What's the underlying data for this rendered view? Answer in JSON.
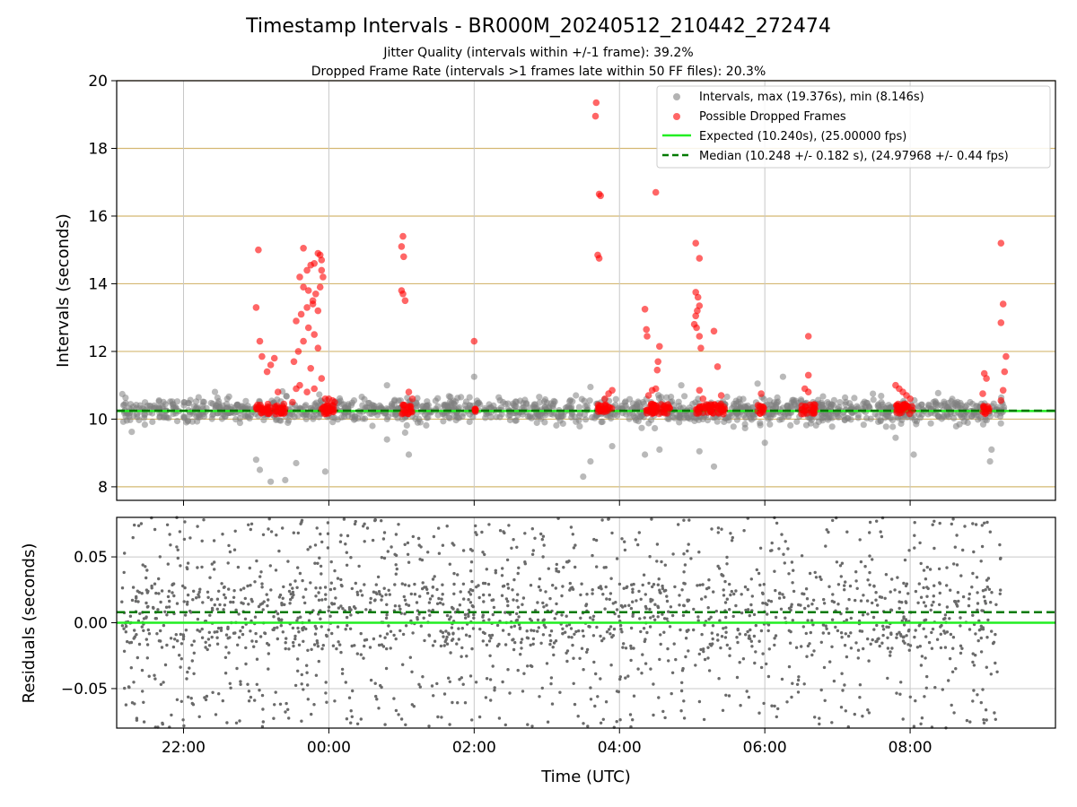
{
  "chart_data": [
    {
      "type": "scatter",
      "title": "Timestamp Intervals - BR000M_20240512_210442_272474",
      "subtitle_lines": [
        "Jitter Quality (intervals within +/-1 frame): 39.2%",
        "Dropped Frame Rate (intervals >1 frames late within 50 FF files): 20.3%"
      ],
      "xlabel": "",
      "ylabel": "Intervals (seconds)",
      "x_unit": "hours since 00:00 UTC (negative = previous day)",
      "xlim": [
        -2.92,
        10.0
      ],
      "ylim": [
        7.6,
        20
      ],
      "yticks": [
        8,
        10,
        12,
        14,
        16,
        18,
        20
      ],
      "ytick_labels": [
        "8",
        "10",
        "12",
        "14",
        "16",
        "18",
        "20"
      ],
      "xticks": [
        -2,
        0,
        2,
        4,
        6,
        8
      ],
      "grid": "on",
      "legend_position": "top-right",
      "colors": {
        "intervals": "#808080",
        "dropped": "#ff0000",
        "expected": "#22ee22",
        "median": "#007a00",
        "hgrid": "#d4b872",
        "vgrid": "#c8c8c8"
      },
      "series": [
        {
          "name": "Intervals, max (19.376s), min (8.146s)",
          "marker": "circle",
          "color": "#808080",
          "summary": {
            "max": 19.376,
            "min": 8.146,
            "x_range": [
              -2.85,
              9.3
            ],
            "typical_band": [
              9.6,
              10.8
            ]
          },
          "outlier_points": [
            {
              "x": -1.0,
              "y": 8.8
            },
            {
              "x": -0.95,
              "y": 8.5
            },
            {
              "x": -0.8,
              "y": 8.15
            },
            {
              "x": -0.6,
              "y": 8.2
            },
            {
              "x": -0.45,
              "y": 8.7
            },
            {
              "x": -0.05,
              "y": 8.45
            },
            {
              "x": 0.6,
              "y": 9.8
            },
            {
              "x": 1.1,
              "y": 8.95
            },
            {
              "x": 1.05,
              "y": 9.6
            },
            {
              "x": 0.8,
              "y": 9.4
            },
            {
              "x": 3.5,
              "y": 8.3
            },
            {
              "x": 3.6,
              "y": 8.75
            },
            {
              "x": 3.9,
              "y": 9.2
            },
            {
              "x": 4.35,
              "y": 8.95
            },
            {
              "x": 4.55,
              "y": 9.1
            },
            {
              "x": 5.1,
              "y": 9.05
            },
            {
              "x": 5.3,
              "y": 8.6
            },
            {
              "x": 6.0,
              "y": 9.3
            },
            {
              "x": 7.8,
              "y": 9.45
            },
            {
              "x": 8.05,
              "y": 8.95
            },
            {
              "x": 9.1,
              "y": 8.75
            },
            {
              "x": 9.12,
              "y": 9.1
            },
            {
              "x": 5.9,
              "y": 11.05
            },
            {
              "x": 6.25,
              "y": 11.25
            },
            {
              "x": 0.8,
              "y": 11.0
            },
            {
              "x": 2.0,
              "y": 11.25
            },
            {
              "x": 3.6,
              "y": 10.95
            },
            {
              "x": 4.85,
              "y": 11.0
            }
          ]
        },
        {
          "name": "Possible Dropped Frames",
          "marker": "circle",
          "color": "#ff0000",
          "points": [
            {
              "x": -0.97,
              "y": 15.0
            },
            {
              "x": -1.0,
              "y": 13.3
            },
            {
              "x": -0.95,
              "y": 12.3
            },
            {
              "x": -0.92,
              "y": 11.85
            },
            {
              "x": -0.75,
              "y": 11.8
            },
            {
              "x": -0.8,
              "y": 11.6
            },
            {
              "x": -0.85,
              "y": 11.4
            },
            {
              "x": -0.7,
              "y": 10.8
            },
            {
              "x": -0.35,
              "y": 15.05
            },
            {
              "x": -0.15,
              "y": 14.9
            },
            {
              "x": -0.12,
              "y": 14.85
            },
            {
              "x": -0.1,
              "y": 14.7
            },
            {
              "x": -0.2,
              "y": 14.6
            },
            {
              "x": -0.25,
              "y": 14.55
            },
            {
              "x": -0.3,
              "y": 14.4
            },
            {
              "x": -0.4,
              "y": 14.2
            },
            {
              "x": -0.1,
              "y": 14.4
            },
            {
              "x": -0.08,
              "y": 14.2
            },
            {
              "x": -0.12,
              "y": 13.9
            },
            {
              "x": -0.18,
              "y": 13.7
            },
            {
              "x": -0.22,
              "y": 13.5
            },
            {
              "x": -0.3,
              "y": 13.3
            },
            {
              "x": -0.38,
              "y": 13.1
            },
            {
              "x": -0.45,
              "y": 12.9
            },
            {
              "x": -0.28,
              "y": 12.7
            },
            {
              "x": -0.2,
              "y": 12.5
            },
            {
              "x": -0.35,
              "y": 12.3
            },
            {
              "x": -0.15,
              "y": 12.1
            },
            {
              "x": -0.42,
              "y": 12.0
            },
            {
              "x": -0.48,
              "y": 11.7
            },
            {
              "x": -0.25,
              "y": 11.5
            },
            {
              "x": -0.1,
              "y": 11.2
            },
            {
              "x": -0.4,
              "y": 11.0
            },
            {
              "x": -0.3,
              "y": 10.8
            },
            {
              "x": -0.2,
              "y": 10.9
            },
            {
              "x": -0.05,
              "y": 10.6
            },
            {
              "x": -0.5,
              "y": 10.5
            },
            {
              "x": -0.45,
              "y": 10.9
            },
            {
              "x": -0.35,
              "y": 13.9
            },
            {
              "x": -0.28,
              "y": 13.8
            },
            {
              "x": -0.22,
              "y": 13.4
            },
            {
              "x": -0.15,
              "y": 13.2
            },
            {
              "x": 1.02,
              "y": 15.4
            },
            {
              "x": 1.0,
              "y": 15.1
            },
            {
              "x": 1.03,
              "y": 14.8
            },
            {
              "x": 1.0,
              "y": 13.8
            },
            {
              "x": 1.02,
              "y": 13.7
            },
            {
              "x": 1.05,
              "y": 13.5
            },
            {
              "x": 1.1,
              "y": 10.8
            },
            {
              "x": 1.15,
              "y": 10.6
            },
            {
              "x": 0.0,
              "y": 10.6
            },
            {
              "x": 0.05,
              "y": 10.55
            },
            {
              "x": 0.08,
              "y": 10.5
            },
            {
              "x": 2.0,
              "y": 12.3
            },
            {
              "x": 3.68,
              "y": 19.35
            },
            {
              "x": 3.67,
              "y": 18.95
            },
            {
              "x": 3.72,
              "y": 16.65
            },
            {
              "x": 3.74,
              "y": 16.6
            },
            {
              "x": 3.7,
              "y": 14.85
            },
            {
              "x": 3.72,
              "y": 14.75
            },
            {
              "x": 3.9,
              "y": 10.85
            },
            {
              "x": 3.85,
              "y": 10.75
            },
            {
              "x": 3.8,
              "y": 10.6
            },
            {
              "x": 4.5,
              "y": 16.7
            },
            {
              "x": 4.35,
              "y": 13.25
            },
            {
              "x": 4.37,
              "y": 12.65
            },
            {
              "x": 4.38,
              "y": 12.45
            },
            {
              "x": 4.55,
              "y": 12.15
            },
            {
              "x": 4.53,
              "y": 11.7
            },
            {
              "x": 4.52,
              "y": 11.45
            },
            {
              "x": 4.5,
              "y": 10.9
            },
            {
              "x": 4.45,
              "y": 10.85
            },
            {
              "x": 4.4,
              "y": 10.7
            },
            {
              "x": 5.05,
              "y": 15.2
            },
            {
              "x": 5.1,
              "y": 14.75
            },
            {
              "x": 5.05,
              "y": 13.75
            },
            {
              "x": 5.08,
              "y": 13.6
            },
            {
              "x": 5.1,
              "y": 13.35
            },
            {
              "x": 5.07,
              "y": 13.2
            },
            {
              "x": 5.05,
              "y": 13.05
            },
            {
              "x": 5.03,
              "y": 12.8
            },
            {
              "x": 5.06,
              "y": 12.7
            },
            {
              "x": 5.3,
              "y": 12.6
            },
            {
              "x": 5.1,
              "y": 12.45
            },
            {
              "x": 5.12,
              "y": 12.1
            },
            {
              "x": 5.35,
              "y": 11.55
            },
            {
              "x": 5.1,
              "y": 10.85
            },
            {
              "x": 5.15,
              "y": 10.6
            },
            {
              "x": 5.4,
              "y": 10.7
            },
            {
              "x": 5.95,
              "y": 10.75
            },
            {
              "x": 6.6,
              "y": 12.45
            },
            {
              "x": 6.6,
              "y": 11.3
            },
            {
              "x": 6.55,
              "y": 10.9
            },
            {
              "x": 6.6,
              "y": 10.8
            },
            {
              "x": 7.8,
              "y": 11.0
            },
            {
              "x": 7.85,
              "y": 10.9
            },
            {
              "x": 7.9,
              "y": 10.8
            },
            {
              "x": 7.95,
              "y": 10.7
            },
            {
              "x": 8.0,
              "y": 10.6
            },
            {
              "x": 9.02,
              "y": 11.35
            },
            {
              "x": 9.05,
              "y": 11.2
            },
            {
              "x": 9.0,
              "y": 10.75
            },
            {
              "x": 9.25,
              "y": 15.2
            },
            {
              "x": 9.28,
              "y": 13.4
            },
            {
              "x": 9.25,
              "y": 12.85
            },
            {
              "x": 9.32,
              "y": 11.85
            },
            {
              "x": 9.3,
              "y": 11.4
            },
            {
              "x": 9.28,
              "y": 10.85
            },
            {
              "x": 9.25,
              "y": 10.55
            }
          ],
          "clusters": [
            {
              "x_range": [
                -1.0,
                -0.6
              ],
              "y_range": [
                10.15,
                10.45
              ]
            },
            {
              "x_range": [
                -0.1,
                0.1
              ],
              "y_range": [
                10.15,
                10.45
              ]
            },
            {
              "x_range": [
                1.0,
                1.15
              ],
              "y_range": [
                10.15,
                10.45
              ]
            },
            {
              "x_range": [
                3.7,
                3.9
              ],
              "y_range": [
                10.15,
                10.45
              ]
            },
            {
              "x_range": [
                4.35,
                4.7
              ],
              "y_range": [
                10.15,
                10.45
              ]
            },
            {
              "x_range": [
                5.05,
                5.45
              ],
              "y_range": [
                10.15,
                10.45
              ]
            },
            {
              "x_range": [
                5.9,
                6.0
              ],
              "y_range": [
                10.15,
                10.45
              ]
            },
            {
              "x_range": [
                6.5,
                6.7
              ],
              "y_range": [
                10.15,
                10.45
              ]
            },
            {
              "x_range": [
                7.8,
                8.05
              ],
              "y_range": [
                10.15,
                10.45
              ]
            },
            {
              "x_range": [
                9.0,
                9.1
              ],
              "y_range": [
                10.15,
                10.4
              ]
            },
            {
              "x_range": [
                2.0,
                2.02
              ],
              "y_range": [
                10.2,
                10.3
              ]
            }
          ]
        },
        {
          "name": "Expected (10.240s), (25.00000 fps)",
          "type": "hline",
          "y": 10.24,
          "color": "#22ee22",
          "style": "solid"
        },
        {
          "name": "Median (10.248 +/- 0.182 s), (24.97968 +/- 0.44 fps)",
          "type": "hline",
          "y": 10.248,
          "color": "#007a00",
          "style": "dashed"
        }
      ]
    },
    {
      "type": "scatter",
      "xlabel": "Time (UTC)",
      "ylabel": "Residuals (seconds)",
      "x_unit": "hours since 00:00 UTC (negative = previous day)",
      "xlim": [
        -2.92,
        10.0
      ],
      "ylim": [
        -0.08,
        0.08
      ],
      "yticks": [
        -0.05,
        0,
        0.05
      ],
      "ytick_labels": [
        "−0.05",
        "0.00",
        "0.05"
      ],
      "xticks": [
        -2,
        0,
        2,
        4,
        6,
        8
      ],
      "xtick_labels": [
        "22:00",
        "00:00",
        "02:00",
        "04:00",
        "06:00",
        "08:00"
      ],
      "grid": "on",
      "colors": {
        "points": "#6a6a6a",
        "zero_line": "#22ee22",
        "median_line": "#007a00",
        "grid": "#c8c8c8"
      },
      "series": [
        {
          "name": "",
          "marker": "dot",
          "color": "#6a6a6a",
          "summary": {
            "x_range": [
              -2.85,
              9.25
            ],
            "y_range": [
              -0.08,
              0.08
            ],
            "dense_band": [
              -0.02,
              0.03
            ]
          }
        },
        {
          "name": "",
          "type": "hline",
          "y": 0.0,
          "color": "#22ee22",
          "style": "solid"
        },
        {
          "name": "",
          "type": "hline",
          "y": 0.008,
          "color": "#007a00",
          "style": "dashed"
        }
      ]
    }
  ]
}
